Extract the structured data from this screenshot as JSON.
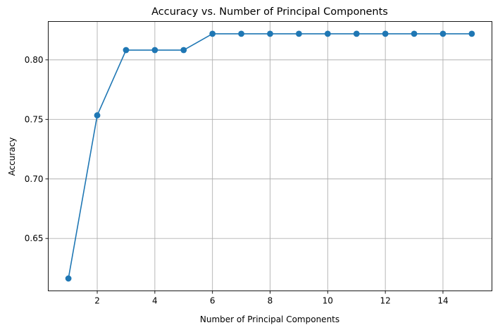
{
  "chart_data": {
    "type": "line",
    "title": "Accuracy vs. Number of Principal Components",
    "xlabel": "Number of Principal Components",
    "ylabel": "Accuracy",
    "x": [
      1,
      2,
      3,
      4,
      5,
      6,
      7,
      8,
      9,
      10,
      11,
      12,
      13,
      14,
      15
    ],
    "series": [
      {
        "values": [
          0.6164,
          0.7534,
          0.8082,
          0.8082,
          0.8082,
          0.8219,
          0.8219,
          0.8219,
          0.8219,
          0.8219,
          0.8219,
          0.8219,
          0.8219,
          0.8219,
          0.8219
        ],
        "color": "#1f77b4",
        "marker": "circle"
      }
    ],
    "xlim": [
      0.3,
      15.7
    ],
    "ylim": [
      0.606,
      0.8322
    ],
    "xticks": [
      2,
      4,
      6,
      8,
      10,
      12,
      14
    ],
    "xtick_labels": [
      "2",
      "4",
      "6",
      "8",
      "10",
      "12",
      "14"
    ],
    "yticks": [
      0.65,
      0.7,
      0.75,
      0.8
    ],
    "ytick_labels": [
      "0.65",
      "0.70",
      "0.75",
      "0.80"
    ],
    "grid": true,
    "legend": "none"
  }
}
